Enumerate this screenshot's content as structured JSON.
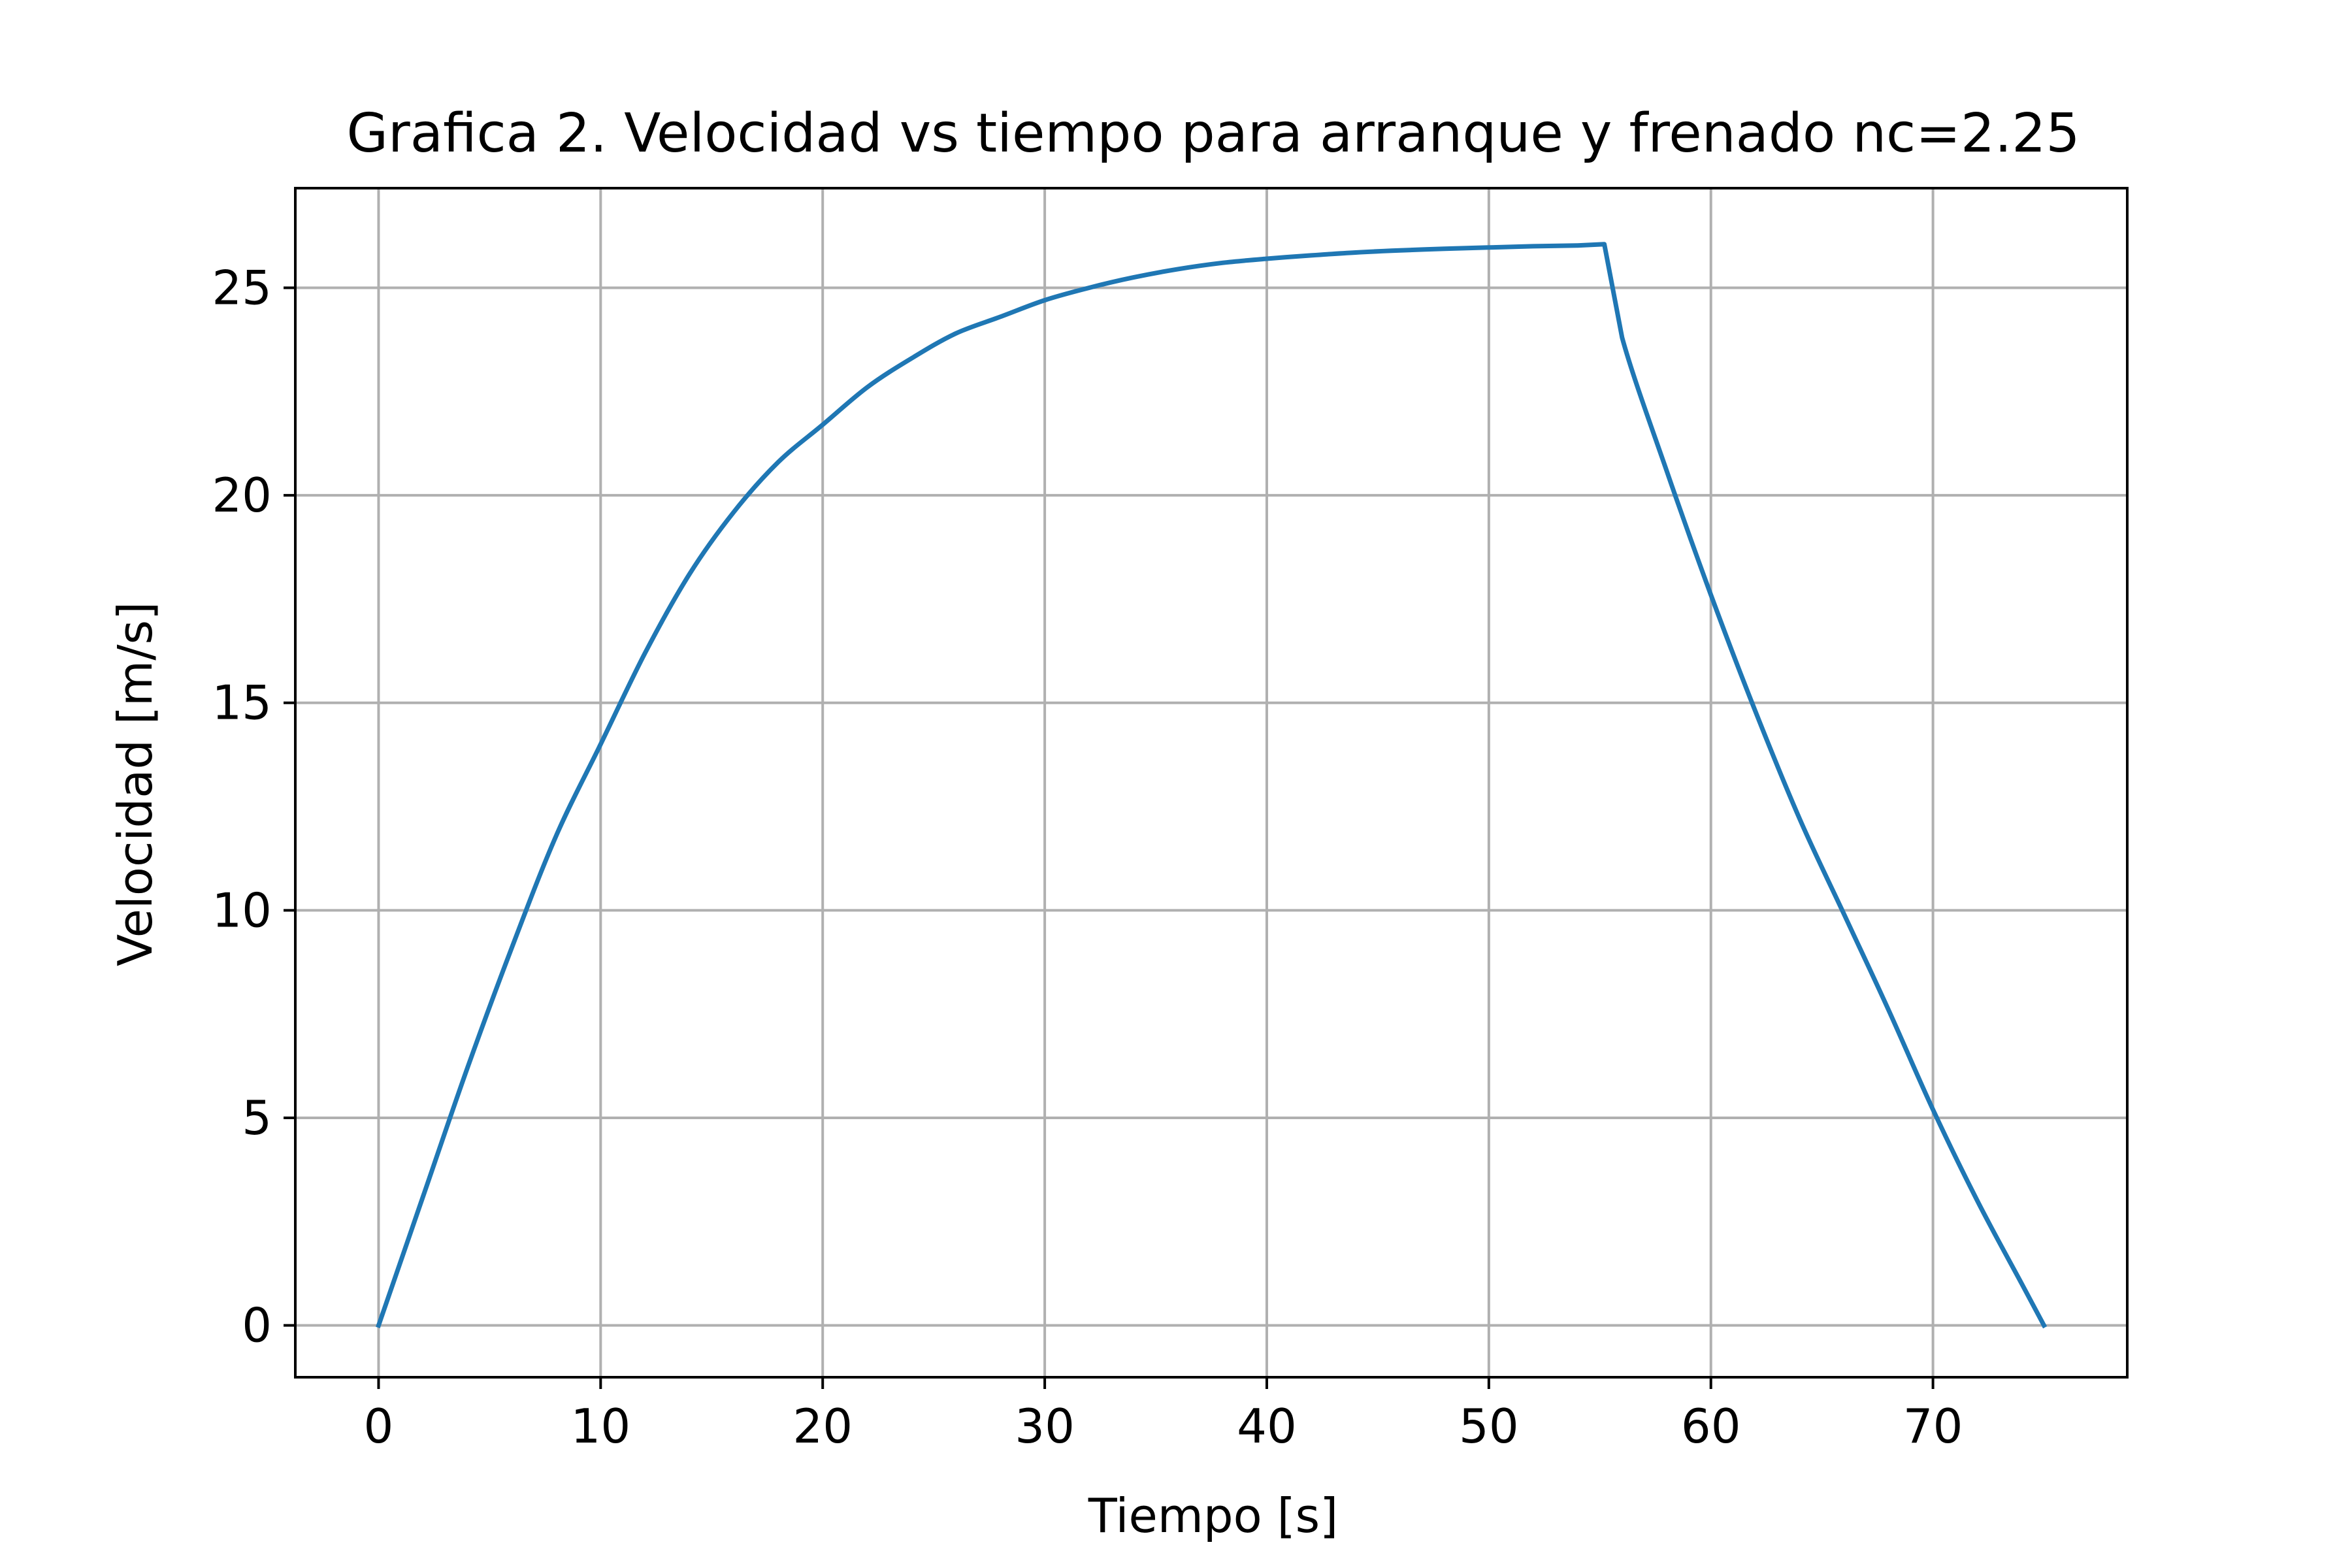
{
  "chart_data": {
    "type": "line",
    "title": "Grafica 2. Velocidad vs tiempo para arranque y frenado nc=2.25",
    "xlabel": "Tiempo  [s]",
    "ylabel": "Velocidad [m/s]",
    "xlim": [
      -3.75,
      78.75
    ],
    "ylim": [
      -1.25,
      27.4
    ],
    "x_ticks": [
      0,
      10,
      20,
      30,
      40,
      50,
      60,
      70
    ],
    "y_ticks": [
      0,
      5,
      10,
      15,
      20,
      25
    ],
    "grid": true,
    "line_color": "#1f77b4",
    "grid_color": "#b0b0b0",
    "series": [
      {
        "name": "velocidad",
        "x": [
          0,
          2,
          4,
          6,
          8,
          10,
          12,
          14,
          16,
          18,
          20,
          22,
          24,
          26,
          28,
          30,
          32,
          34,
          36,
          38,
          40,
          42,
          44,
          46,
          48,
          50,
          52,
          54,
          55.2,
          56,
          58,
          60,
          62,
          64,
          66,
          68,
          70,
          72,
          74,
          75
        ],
        "y": [
          0,
          3.1,
          6.2,
          9.1,
          11.8,
          14.0,
          16.2,
          18.1,
          19.6,
          20.8,
          21.7,
          22.6,
          23.3,
          23.9,
          24.3,
          24.7,
          25.0,
          25.25,
          25.45,
          25.6,
          25.7,
          25.78,
          25.85,
          25.9,
          25.94,
          25.97,
          26.0,
          26.02,
          26.05,
          23.8,
          20.6,
          17.6,
          14.8,
          12.2,
          9.9,
          7.6,
          5.2,
          3.0,
          1.0,
          0
        ]
      }
    ]
  }
}
